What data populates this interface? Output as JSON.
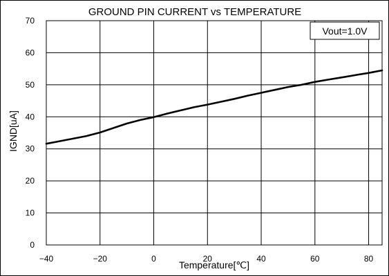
{
  "chart_data": {
    "type": "line",
    "title": "GROUND PIN CURRENT vs TEMPERATURE",
    "xlabel": "Temperature[℃]",
    "ylabel": "IGND[uA]",
    "xlim": [
      -40,
      85
    ],
    "ylim": [
      0,
      70
    ],
    "x_ticks": [
      -40,
      -20,
      0,
      20,
      40,
      60,
      80
    ],
    "y_ticks": [
      0,
      10,
      20,
      30,
      40,
      50,
      60,
      70
    ],
    "x_tick_labels": [
      "−40",
      "−20",
      "0",
      "20",
      "40",
      "60",
      "80"
    ],
    "y_tick_labels": [
      "0",
      "10",
      "20",
      "30",
      "40",
      "50",
      "60",
      "70"
    ],
    "grid": true,
    "legend_placement": "top-right",
    "series": [
      {
        "name": "Vout=1.0V",
        "color": "#000000",
        "x": [
          -40,
          -35,
          -30,
          -25,
          -20,
          -15,
          -10,
          -5,
          0,
          5,
          10,
          15,
          20,
          25,
          30,
          35,
          40,
          45,
          50,
          55,
          60,
          65,
          70,
          75,
          80,
          85
        ],
        "y": [
          31.6,
          32.4,
          33.2,
          34.0,
          35.1,
          36.5,
          37.9,
          39.0,
          39.9,
          41.0,
          42.0,
          43.0,
          43.8,
          44.7,
          45.6,
          46.6,
          47.5,
          48.4,
          49.3,
          50.0,
          50.9,
          51.6,
          52.3,
          53.0,
          53.7,
          54.5
        ]
      }
    ]
  }
}
